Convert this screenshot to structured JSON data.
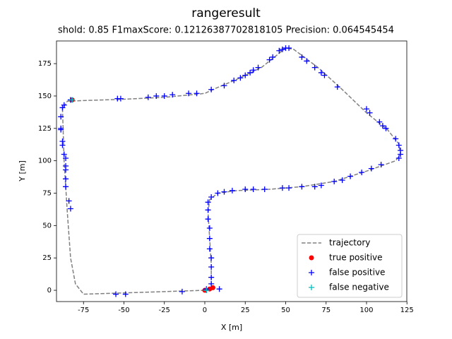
{
  "chart_data": {
    "type": "scatter",
    "title": "rangeresult",
    "subtitle": "shold:  0.85  F1maxScore:  0.12126387702818105  Precision:  0.064545454",
    "x_label": "X [m]",
    "y_label": "Y [m]",
    "xlim": [
      -91.7,
      124.9
    ],
    "ylim": [
      -8.7,
      192.5
    ],
    "xticks": [
      -75,
      -50,
      -25,
      0,
      25,
      50,
      75,
      100,
      125
    ],
    "yticks": [
      0,
      25,
      50,
      75,
      100,
      125,
      150,
      175
    ],
    "legend": "lower right",
    "series": [
      {
        "name": "trajectory",
        "color": "#808080",
        "style": "dashed",
        "x": [
          0,
          -25,
          -50,
          -75,
          -80,
          -83,
          -85,
          -87,
          -88,
          -85,
          -75,
          -50,
          -25,
          0,
          5,
          20,
          35,
          45,
          50,
          55,
          70,
          85,
          100,
          113,
          120,
          121,
          118,
          100,
          80,
          60,
          40,
          20,
          8,
          3,
          2,
          3,
          4,
          4,
          3,
          0
        ],
        "y": [
          0,
          -1,
          -2,
          -3,
          5,
          25,
          60,
          100,
          140,
          146,
          146.5,
          147.5,
          149,
          152,
          155,
          163,
          172,
          182,
          187,
          186,
          172,
          155,
          137,
          124,
          113,
          105,
          100,
          92,
          84,
          80,
          78,
          77,
          75,
          70,
          60,
          40,
          20,
          5,
          1,
          0
        ]
      },
      {
        "name": "true positive",
        "color": "#ff0000",
        "marker": "o",
        "x": [
          -82,
          0,
          5,
          3
        ],
        "y": [
          147,
          0,
          2,
          1
        ]
      },
      {
        "name": "false positive",
        "color": "#0000ff",
        "marker": "+",
        "x": [
          -55,
          -49,
          -14,
          1,
          9,
          -89,
          -88,
          -87,
          -89,
          -89,
          -88,
          -88,
          -87,
          -86,
          -86,
          -86,
          -86,
          -86,
          -84,
          -83,
          -83,
          -54,
          -52,
          -35,
          -30,
          -25,
          -20,
          -10,
          -5,
          4,
          12,
          18,
          22,
          25,
          28,
          30,
          33,
          40,
          42,
          46,
          48,
          50,
          52,
          60,
          63,
          68,
          72,
          74,
          82,
          100,
          102,
          108,
          110,
          112,
          118,
          120,
          121,
          121,
          120,
          109,
          103,
          97,
          90,
          85,
          80,
          72,
          68,
          60,
          52,
          48,
          37,
          30,
          25,
          17,
          12,
          8,
          4,
          2,
          2,
          2,
          3,
          3,
          3,
          4,
          4,
          4,
          4,
          1
        ],
        "y": [
          -3,
          -3,
          -1,
          0,
          1,
          134,
          141,
          143,
          125,
          124,
          115,
          112,
          105,
          102,
          96,
          93,
          86,
          80,
          69,
          63,
          147,
          148,
          148,
          149,
          150,
          150,
          151,
          152,
          152,
          155,
          158,
          162,
          164,
          166,
          168,
          170,
          172,
          178,
          180,
          185,
          186,
          187,
          187,
          180,
          177,
          172,
          168,
          166,
          157,
          140,
          137,
          130,
          127,
          125,
          117,
          112,
          108,
          105,
          102,
          97,
          94,
          91,
          88,
          85,
          84,
          81,
          80,
          80,
          79,
          79,
          78,
          78,
          78,
          77,
          76,
          75,
          72,
          68,
          62,
          55,
          48,
          40,
          32,
          25,
          18,
          10,
          5,
          1
        ]
      },
      {
        "name": "false negative",
        "color": "#00bfbf",
        "marker": "+",
        "x": [
          -82,
          1
        ],
        "y": [
          147,
          0
        ]
      }
    ]
  }
}
